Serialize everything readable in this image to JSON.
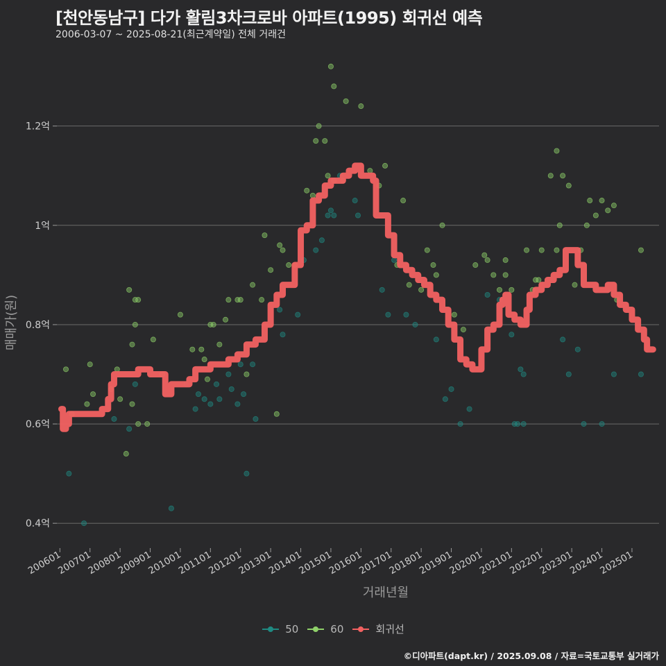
{
  "header": {
    "title": "[천안동남구] 다가 활림3차크로바 아파트(1995) 회귀선 예측",
    "subtitle": "2006-03-07 ~ 2025-08-21(최근계약일) 전체 거래건"
  },
  "footer": {
    "credit": "©디아파트(dapt.kr) / 2025.09.08 / 자료=국토교통부 실거래가"
  },
  "colors": {
    "background": "#29292b",
    "grid": "#6a6a6a",
    "series_50": "#1f8a82",
    "series_60": "#8fd16a",
    "regression": "#f26161"
  },
  "chart_data": {
    "type": "scatter",
    "title": "[천안동남구] 다가 활림3차크로바 아파트(1995) 회귀선 예측",
    "subtitle": "2006-03-07 ~ 2025-08-21(최근계약일) 전체 거래건",
    "xlabel": "거래년월",
    "ylabel": "매매가(원)",
    "x_ticks": [
      "200601",
      "200701",
      "200801",
      "200901",
      "201001",
      "201101",
      "201201",
      "201301",
      "201401",
      "201501",
      "201601",
      "201701",
      "201801",
      "201901",
      "202001",
      "202101",
      "202201",
      "202301",
      "202401",
      "202501"
    ],
    "y_ticks": [
      {
        "value": 0.4,
        "label": "0.4억"
      },
      {
        "value": 0.6,
        "label": "0.6억"
      },
      {
        "value": 0.8,
        "label": "0.8억"
      },
      {
        "value": 1.0,
        "label": "1억"
      },
      {
        "value": 1.2,
        "label": "1.2억"
      }
    ],
    "ylim": [
      0.35,
      1.37
    ],
    "xlim": [
      2005.9,
      2025.9
    ],
    "grid": "horizontal",
    "legend_position": "bottom",
    "series": [
      {
        "name": "50",
        "points": [
          [
            2006.3,
            0.5
          ],
          [
            2006.8,
            0.4
          ],
          [
            2007.8,
            0.61
          ],
          [
            2008.3,
            0.59
          ],
          [
            2008.5,
            0.68
          ],
          [
            2009.7,
            0.43
          ],
          [
            2010.2,
            0.68
          ],
          [
            2010.5,
            0.63
          ],
          [
            2010.6,
            0.66
          ],
          [
            2010.8,
            0.65
          ],
          [
            2011.0,
            0.64
          ],
          [
            2011.2,
            0.68
          ],
          [
            2011.3,
            0.65
          ],
          [
            2011.6,
            0.7
          ],
          [
            2011.7,
            0.67
          ],
          [
            2011.9,
            0.64
          ],
          [
            2012.0,
            0.72
          ],
          [
            2012.1,
            0.66
          ],
          [
            2012.2,
            0.5
          ],
          [
            2012.4,
            0.72
          ],
          [
            2012.5,
            0.61
          ],
          [
            2013.3,
            0.83
          ],
          [
            2013.4,
            0.78
          ],
          [
            2013.9,
            0.82
          ],
          [
            2014.1,
            0.93
          ],
          [
            2014.5,
            0.95
          ],
          [
            2014.7,
            0.97
          ],
          [
            2014.9,
            1.02
          ],
          [
            2015.0,
            1.03
          ],
          [
            2015.1,
            1.02
          ],
          [
            2015.3,
            1.1
          ],
          [
            2015.8,
            1.05
          ],
          [
            2015.9,
            1.02
          ],
          [
            2016.7,
            0.87
          ],
          [
            2016.9,
            0.82
          ],
          [
            2017.1,
            0.93
          ],
          [
            2017.5,
            0.82
          ],
          [
            2017.8,
            0.8
          ],
          [
            2018.5,
            0.77
          ],
          [
            2018.8,
            0.65
          ],
          [
            2019.0,
            0.67
          ],
          [
            2019.3,
            0.6
          ],
          [
            2019.6,
            0.63
          ],
          [
            2020.2,
            0.86
          ],
          [
            2020.6,
            0.85
          ],
          [
            2021.0,
            0.78
          ],
          [
            2021.1,
            0.6
          ],
          [
            2021.2,
            0.6
          ],
          [
            2021.4,
            0.6
          ],
          [
            2021.3,
            0.71
          ],
          [
            2021.4,
            0.7
          ],
          [
            2022.7,
            0.77
          ],
          [
            2022.9,
            0.7
          ],
          [
            2023.2,
            0.75
          ],
          [
            2023.4,
            0.6
          ],
          [
            2024.0,
            0.6
          ],
          [
            2024.4,
            0.7
          ],
          [
            2025.3,
            0.7
          ]
        ]
      },
      {
        "name": "60",
        "points": [
          [
            2006.2,
            0.71
          ],
          [
            2006.4,
            0.62
          ],
          [
            2006.9,
            0.64
          ],
          [
            2007.0,
            0.72
          ],
          [
            2007.1,
            0.66
          ],
          [
            2007.7,
            0.67
          ],
          [
            2007.9,
            0.71
          ],
          [
            2008.0,
            0.65
          ],
          [
            2008.2,
            0.54
          ],
          [
            2008.3,
            0.87
          ],
          [
            2008.4,
            0.64
          ],
          [
            2008.4,
            0.76
          ],
          [
            2008.5,
            0.8
          ],
          [
            2008.5,
            0.85
          ],
          [
            2008.6,
            0.85
          ],
          [
            2008.6,
            0.6
          ],
          [
            2008.9,
            0.6
          ],
          [
            2009.1,
            0.77
          ],
          [
            2009.4,
            0.7
          ],
          [
            2010.0,
            0.82
          ],
          [
            2010.4,
            0.75
          ],
          [
            2010.7,
            0.75
          ],
          [
            2010.8,
            0.73
          ],
          [
            2010.9,
            0.69
          ],
          [
            2011.0,
            0.8
          ],
          [
            2011.1,
            0.8
          ],
          [
            2011.3,
            0.76
          ],
          [
            2011.5,
            0.81
          ],
          [
            2011.6,
            0.85
          ],
          [
            2011.9,
            0.85
          ],
          [
            2012.0,
            0.85
          ],
          [
            2012.2,
            0.7
          ],
          [
            2012.4,
            0.88
          ],
          [
            2012.7,
            0.85
          ],
          [
            2012.8,
            0.98
          ],
          [
            2013.0,
            0.91
          ],
          [
            2013.2,
            0.62
          ],
          [
            2013.3,
            0.96
          ],
          [
            2013.4,
            0.95
          ],
          [
            2013.6,
            0.92
          ],
          [
            2013.8,
            0.92
          ],
          [
            2014.2,
            1.07
          ],
          [
            2014.4,
            1.06
          ],
          [
            2014.5,
            1.17
          ],
          [
            2014.6,
            1.2
          ],
          [
            2014.8,
            1.17
          ],
          [
            2014.9,
            1.1
          ],
          [
            2015.1,
            1.09
          ],
          [
            2015.4,
            1.09
          ],
          [
            2015.0,
            1.32
          ],
          [
            2015.1,
            1.28
          ],
          [
            2015.5,
            1.25
          ],
          [
            2016.0,
            1.24
          ],
          [
            2016.3,
            1.11
          ],
          [
            2016.6,
            1.08
          ],
          [
            2016.8,
            1.12
          ],
          [
            2017.2,
            0.92
          ],
          [
            2017.4,
            1.05
          ],
          [
            2017.6,
            0.88
          ],
          [
            2018.0,
            0.87
          ],
          [
            2018.2,
            0.95
          ],
          [
            2018.4,
            0.92
          ],
          [
            2018.5,
            0.9
          ],
          [
            2018.7,
            1.0
          ],
          [
            2019.1,
            0.82
          ],
          [
            2019.4,
            0.79
          ],
          [
            2019.8,
            0.92
          ],
          [
            2020.1,
            0.94
          ],
          [
            2020.2,
            0.93
          ],
          [
            2020.4,
            0.9
          ],
          [
            2020.6,
            0.87
          ],
          [
            2020.8,
            0.93
          ],
          [
            2020.8,
            0.9
          ],
          [
            2021.0,
            0.87
          ],
          [
            2021.5,
            0.95
          ],
          [
            2021.7,
            0.87
          ],
          [
            2021.8,
            0.89
          ],
          [
            2021.9,
            0.89
          ],
          [
            2022.0,
            0.95
          ],
          [
            2022.3,
            1.1
          ],
          [
            2022.5,
            0.95
          ],
          [
            2022.5,
            1.15
          ],
          [
            2022.6,
            1.0
          ],
          [
            2022.7,
            1.1
          ],
          [
            2022.9,
            1.08
          ],
          [
            2023.1,
            0.88
          ],
          [
            2023.3,
            0.95
          ],
          [
            2023.5,
            1.0
          ],
          [
            2023.6,
            1.05
          ],
          [
            2023.8,
            1.02
          ],
          [
            2024.0,
            1.05
          ],
          [
            2024.2,
            1.03
          ],
          [
            2024.4,
            1.04
          ],
          [
            2024.5,
            0.85
          ],
          [
            2025.3,
            0.95
          ]
        ]
      },
      {
        "name": "회귀선",
        "points": [
          [
            2006.05,
            0.63
          ],
          [
            2006.1,
            0.59
          ],
          [
            2006.2,
            0.6
          ],
          [
            2006.3,
            0.62
          ],
          [
            2006.5,
            0.62
          ],
          [
            2006.7,
            0.62
          ],
          [
            2007.0,
            0.62
          ],
          [
            2007.2,
            0.62
          ],
          [
            2007.4,
            0.63
          ],
          [
            2007.6,
            0.65
          ],
          [
            2007.7,
            0.68
          ],
          [
            2007.8,
            0.7
          ],
          [
            2008.0,
            0.7
          ],
          [
            2008.3,
            0.7
          ],
          [
            2008.6,
            0.71
          ],
          [
            2008.8,
            0.71
          ],
          [
            2009.0,
            0.7
          ],
          [
            2009.3,
            0.7
          ],
          [
            2009.5,
            0.66
          ],
          [
            2009.7,
            0.68
          ],
          [
            2010.0,
            0.68
          ],
          [
            2010.3,
            0.69
          ],
          [
            2010.5,
            0.71
          ],
          [
            2010.8,
            0.71
          ],
          [
            2011.0,
            0.72
          ],
          [
            2011.3,
            0.72
          ],
          [
            2011.6,
            0.73
          ],
          [
            2011.9,
            0.74
          ],
          [
            2012.2,
            0.76
          ],
          [
            2012.5,
            0.77
          ],
          [
            2012.8,
            0.8
          ],
          [
            2013.0,
            0.84
          ],
          [
            2013.2,
            0.86
          ],
          [
            2013.4,
            0.88
          ],
          [
            2013.6,
            0.88
          ],
          [
            2013.8,
            0.92
          ],
          [
            2014.0,
            0.99
          ],
          [
            2014.2,
            1.0
          ],
          [
            2014.4,
            1.05
          ],
          [
            2014.6,
            1.06
          ],
          [
            2014.8,
            1.08
          ],
          [
            2015.0,
            1.09
          ],
          [
            2015.2,
            1.09
          ],
          [
            2015.4,
            1.1
          ],
          [
            2015.6,
            1.11
          ],
          [
            2015.8,
            1.12
          ],
          [
            2016.0,
            1.1
          ],
          [
            2016.2,
            1.1
          ],
          [
            2016.4,
            1.09
          ],
          [
            2016.5,
            1.02
          ],
          [
            2016.7,
            1.02
          ],
          [
            2016.9,
            0.98
          ],
          [
            2017.1,
            0.94
          ],
          [
            2017.3,
            0.92
          ],
          [
            2017.5,
            0.91
          ],
          [
            2017.7,
            0.9
          ],
          [
            2017.9,
            0.89
          ],
          [
            2018.1,
            0.88
          ],
          [
            2018.3,
            0.86
          ],
          [
            2018.5,
            0.85
          ],
          [
            2018.7,
            0.83
          ],
          [
            2018.9,
            0.8
          ],
          [
            2019.1,
            0.77
          ],
          [
            2019.3,
            0.73
          ],
          [
            2019.5,
            0.72
          ],
          [
            2019.7,
            0.71
          ],
          [
            2019.8,
            0.71
          ],
          [
            2020.0,
            0.75
          ],
          [
            2020.2,
            0.79
          ],
          [
            2020.4,
            0.8
          ],
          [
            2020.6,
            0.84
          ],
          [
            2020.7,
            0.85
          ],
          [
            2020.8,
            0.86
          ],
          [
            2020.9,
            0.82
          ],
          [
            2021.1,
            0.81
          ],
          [
            2021.3,
            0.8
          ],
          [
            2021.5,
            0.83
          ],
          [
            2021.6,
            0.86
          ],
          [
            2021.8,
            0.87
          ],
          [
            2022.0,
            0.88
          ],
          [
            2022.2,
            0.89
          ],
          [
            2022.4,
            0.9
          ],
          [
            2022.6,
            0.91
          ],
          [
            2022.8,
            0.95
          ],
          [
            2023.0,
            0.95
          ],
          [
            2023.2,
            0.92
          ],
          [
            2023.4,
            0.88
          ],
          [
            2023.6,
            0.88
          ],
          [
            2023.8,
            0.87
          ],
          [
            2024.0,
            0.87
          ],
          [
            2024.2,
            0.88
          ],
          [
            2024.4,
            0.86
          ],
          [
            2024.6,
            0.84
          ],
          [
            2024.8,
            0.83
          ],
          [
            2025.0,
            0.81
          ],
          [
            2025.2,
            0.79
          ],
          [
            2025.4,
            0.77
          ],
          [
            2025.5,
            0.75
          ],
          [
            2025.7,
            0.75
          ]
        ]
      }
    ],
    "legend": [
      "50",
      "60",
      "회귀선"
    ]
  }
}
